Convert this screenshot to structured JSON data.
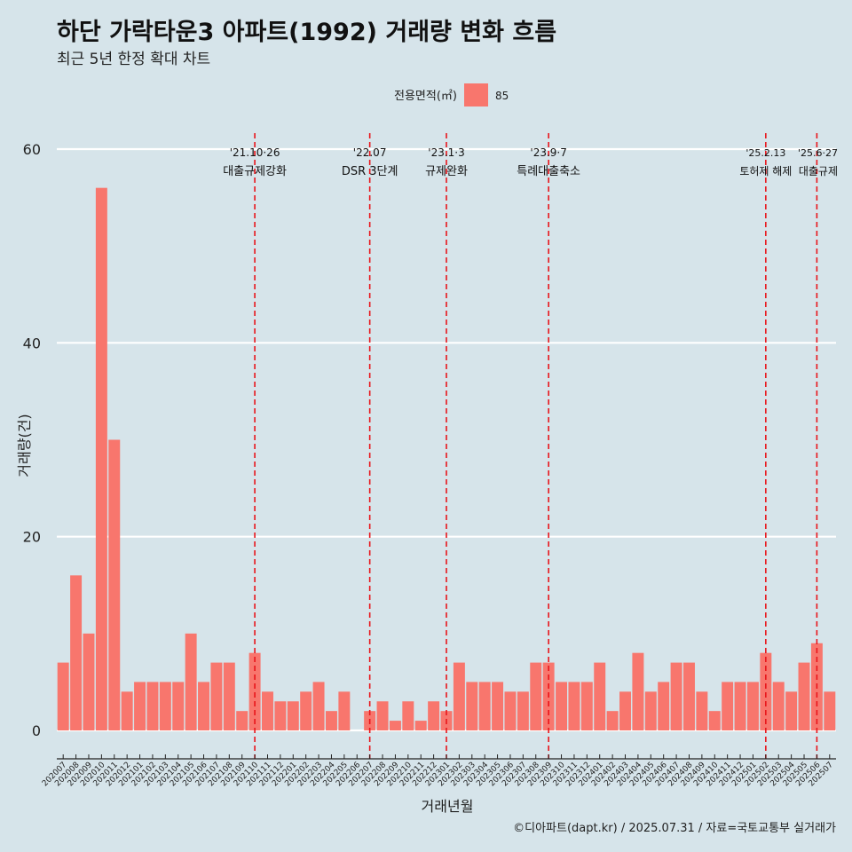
{
  "title": "하단 가락타운3 아파트(1992) 거래량 변화 흐름",
  "subtitle": "최근 5년 한정 확대 차트",
  "caption": "©디아파트(dapt.kr) / 2025.07.31 / 자료=국토교통부 실거래가",
  "colors": {
    "bar": "#f8766d",
    "background": "#d6e4ea",
    "grid": "#ffffff",
    "event_line": "#e8141a"
  },
  "chart_data": {
    "type": "bar",
    "xlabel": "거래년월",
    "ylabel": "거래량(건)",
    "ylim": [
      0,
      60
    ],
    "yticks": [
      0,
      20,
      40,
      60
    ],
    "grid": true,
    "legend": {
      "title": "전용면적(㎡)",
      "placement": "top-center",
      "entries": [
        {
          "label": "85",
          "color": "#f8766d"
        }
      ]
    },
    "categories": [
      "202007",
      "202008",
      "202009",
      "202010",
      "202011",
      "202012",
      "202101",
      "202102",
      "202103",
      "202104",
      "202105",
      "202106",
      "202107",
      "202108",
      "202109",
      "202110",
      "202111",
      "202112",
      "202201",
      "202202",
      "202203",
      "202204",
      "202205",
      "202206",
      "202207",
      "202208",
      "202209",
      "202210",
      "202211",
      "202212",
      "202301",
      "202302",
      "202303",
      "202304",
      "202305",
      "202306",
      "202307",
      "202308",
      "202309",
      "202310",
      "202311",
      "202312",
      "202401",
      "202402",
      "202403",
      "202404",
      "202405",
      "202406",
      "202407",
      "202408",
      "202409",
      "202410",
      "202411",
      "202412",
      "202501",
      "202502",
      "202503",
      "202504",
      "202505",
      "202506",
      "202507"
    ],
    "series": [
      {
        "values": [
          7,
          16,
          10,
          56,
          30,
          4,
          5,
          5,
          5,
          5,
          10,
          5,
          7,
          7,
          2,
          8,
          4,
          3,
          3,
          4,
          5,
          2,
          4,
          0,
          2,
          3,
          1,
          3,
          1,
          3,
          2,
          7,
          5,
          5,
          5,
          4,
          4,
          7,
          7,
          5,
          5,
          5,
          7,
          2,
          4,
          8,
          4,
          5,
          7,
          7,
          4,
          2,
          5,
          5,
          5,
          8,
          5,
          4,
          7,
          9,
          4
        ]
      }
    ],
    "events": [
      {
        "x": "202110",
        "date": "'21.10·26",
        "label": "대출규제강화"
      },
      {
        "x": "202207",
        "date": "'22.07",
        "label": "DSR 3단계"
      },
      {
        "x": "202301",
        "date": "'23.1·3",
        "label": "규제완화"
      },
      {
        "x": "202309",
        "date": "'23.9·7",
        "label": "특례대출축소"
      },
      {
        "x": "202502",
        "date": "'25.2.13",
        "label": "토허제 해제"
      },
      {
        "x": "202506",
        "date": "'25.6·27",
        "label": "대출규제"
      }
    ]
  }
}
